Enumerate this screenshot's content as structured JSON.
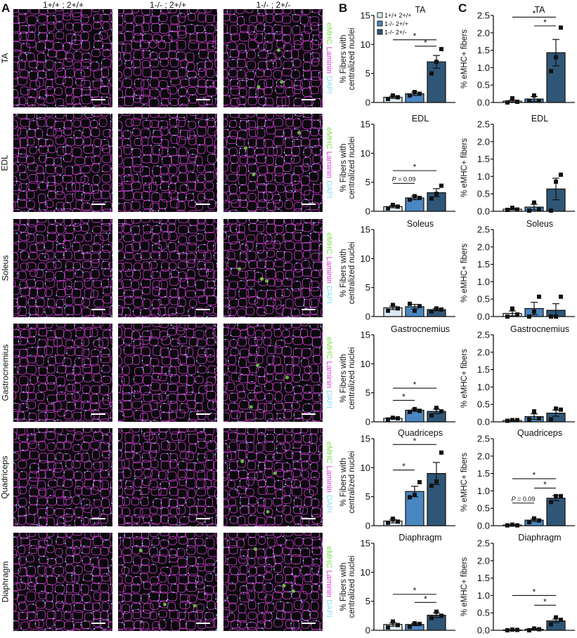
{
  "panels": {
    "A": "A",
    "B": "B",
    "C": "C"
  },
  "genotype_headers": [
    "1+/+ ; 2+/+",
    "1-/- ; 2+/+",
    "1-/- ; 2+/-"
  ],
  "muscles": [
    "TA",
    "EDL",
    "Soleus",
    "Gastrocnemius",
    "Quadriceps",
    "Diaphragm"
  ],
  "stain_labels": {
    "emhc": "eMHC",
    "laminin": "Laminin",
    "dapi": "DAPI"
  },
  "colors": {
    "emhc": "#7ee04a",
    "laminin": "#d63fd6",
    "dapi": "#86dff0",
    "group1": "#dcecf7",
    "group2": "#4a86c0",
    "group3": "#2f5676",
    "image_bg": "#0a0a0c"
  },
  "legend": [
    {
      "label": "1+/+ 2+/+",
      "color": "#dcecf7"
    },
    {
      "label": "1-/- 2+/+",
      "color": "#4a86c0"
    },
    {
      "label": "1-/- 2+/-",
      "color": "#2f5676"
    }
  ],
  "chart_data": [
    {
      "panel": "B",
      "type": "bar",
      "title": "TA",
      "ylabel": "% Fibers with centralized nuclei",
      "ylim": [
        0,
        15
      ],
      "yticks": [
        0,
        5,
        10,
        15
      ],
      "categories": [
        "1+/+ 2+/+",
        "1-/- 2+/+",
        "1-/- 2+/-"
      ],
      "values": [
        0.9,
        1.5,
        7.0
      ],
      "sem": [
        0.2,
        0.3,
        1.1
      ],
      "points": [
        [
          0.6,
          1.2,
          0.9
        ],
        [
          1.2,
          1.8,
          1.5
        ],
        [
          5.0,
          7.0,
          9.2
        ]
      ],
      "annotations": [
        {
          "from": 0,
          "to": 2,
          "label": "*",
          "y": 10.8
        },
        {
          "from": 1,
          "to": 2,
          "label": "*",
          "y": 9.7
        }
      ]
    },
    {
      "panel": "C",
      "type": "bar",
      "title": "TA",
      "ylabel": "% eMHC+ fibers",
      "ylim": [
        0,
        2.5
      ],
      "yticks": [
        0.0,
        0.5,
        1.0,
        1.5,
        2.0,
        2.5
      ],
      "categories": [
        "1+/+ 2+/+",
        "1-/- 2+/+",
        "1-/- 2+/-"
      ],
      "values": [
        0.04,
        0.1,
        1.43
      ],
      "sem": [
        0.03,
        0.07,
        0.38
      ],
      "points": [
        [
          0.0,
          0.12,
          0.02
        ],
        [
          0.05,
          0.2,
          0.05
        ],
        [
          0.9,
          1.3,
          2.15
        ]
      ],
      "annotations": [
        {
          "from": 0,
          "to": 2,
          "label": "*",
          "y": 2.45
        },
        {
          "from": 1,
          "to": 2,
          "label": "*",
          "y": 2.2
        }
      ]
    },
    {
      "panel": "B",
      "type": "bar",
      "title": "EDL",
      "ylabel": "% Fibers with centralized nuclei",
      "ylim": [
        0,
        15
      ],
      "yticks": [
        0,
        5,
        10,
        15
      ],
      "categories": [
        "1+/+ 2+/+",
        "1-/- 2+/+",
        "1-/- 2+/-"
      ],
      "values": [
        0.8,
        2.3,
        3.2
      ],
      "sem": [
        0.2,
        0.3,
        0.7
      ],
      "points": [
        [
          0.5,
          1.1,
          0.8
        ],
        [
          2.0,
          2.6,
          2.3
        ],
        [
          2.2,
          3.0,
          4.4
        ]
      ],
      "annotations": [
        {
          "from": 0,
          "to": 2,
          "label": "*",
          "y": 7.0
        },
        {
          "from": 0,
          "to": 1,
          "label": "P = 0.09",
          "y": 4.8
        }
      ]
    },
    {
      "panel": "C",
      "type": "bar",
      "title": "EDL",
      "ylabel": "% eMHC+ fibers",
      "ylim": [
        0,
        2.5
      ],
      "yticks": [
        0.0,
        0.5,
        1.0,
        1.5,
        2.0,
        2.5
      ],
      "categories": [
        "1+/+ 2+/+",
        "1-/- 2+/+",
        "1-/- 2+/-"
      ],
      "values": [
        0.06,
        0.12,
        0.64
      ],
      "sem": [
        0.02,
        0.08,
        0.31
      ],
      "points": [
        [
          0.04,
          0.1,
          0.05
        ],
        [
          0.02,
          0.25,
          0.05
        ],
        [
          0.02,
          0.85,
          1.05
        ]
      ],
      "annotations": []
    },
    {
      "panel": "B",
      "type": "bar",
      "title": "Soleus",
      "ylabel": "% Fibers with centralized nuclei",
      "ylim": [
        0,
        15
      ],
      "yticks": [
        0,
        5,
        10,
        15
      ],
      "categories": [
        "1+/+ 2+/+",
        "1-/- 2+/+",
        "1-/- 2+/-"
      ],
      "values": [
        1.5,
        1.7,
        1.2
      ],
      "sem": [
        0.3,
        0.4,
        0.2
      ],
      "points": [
        [
          1.0,
          2.0,
          1.4
        ],
        [
          2.2,
          1.0,
          1.8
        ],
        [
          0.9,
          1.4,
          1.2
        ]
      ],
      "annotations": []
    },
    {
      "panel": "C",
      "type": "bar",
      "title": "Soleus",
      "ylabel": "% eMHC+ fibers",
      "ylim": [
        0,
        2.5
      ],
      "yticks": [
        0.0,
        0.5,
        1.0,
        1.5,
        2.0,
        2.5
      ],
      "categories": [
        "1+/+ 2+/+",
        "1-/- 2+/+",
        "1-/- 2+/-"
      ],
      "values": [
        0.09,
        0.23,
        0.18
      ],
      "sem": [
        0.07,
        0.18,
        0.19
      ],
      "points": [
        [
          0.0,
          0.23,
          0.06
        ],
        [
          0.0,
          0.14,
          0.57
        ],
        [
          0.0,
          0.0,
          0.57
        ]
      ],
      "annotations": []
    },
    {
      "panel": "B",
      "type": "bar",
      "title": "Gastrocnemius",
      "ylabel": "% Fibers with centralized nuclei",
      "ylim": [
        0,
        15
      ],
      "yticks": [
        0,
        5,
        10,
        15
      ],
      "categories": [
        "1+/+ 2+/+",
        "1-/- 2+/+",
        "1-/- 2+/-"
      ],
      "values": [
        0.6,
        2.0,
        1.8
      ],
      "sem": [
        0.1,
        0.2,
        0.4
      ],
      "points": [
        [
          0.4,
          0.7,
          0.6
        ],
        [
          1.7,
          2.2,
          1.9
        ],
        [
          1.1,
          2.4,
          1.8
        ]
      ],
      "annotations": [
        {
          "from": 0,
          "to": 2,
          "label": "*",
          "y": 5.8
        },
        {
          "from": 0,
          "to": 1,
          "label": "*",
          "y": 3.7
        }
      ]
    },
    {
      "panel": "C",
      "type": "bar",
      "title": "Gastrocnemius",
      "ylabel": "% eMHC+ fibers",
      "ylim": [
        0,
        2.5
      ],
      "yticks": [
        0.0,
        0.5,
        1.0,
        1.5,
        2.0,
        2.5
      ],
      "categories": [
        "1+/+ 2+/+",
        "1-/- 2+/+",
        "1-/- 2+/-"
      ],
      "values": [
        0.04,
        0.15,
        0.25
      ],
      "sem": [
        0.01,
        0.08,
        0.09
      ],
      "points": [
        [
          0.03,
          0.05,
          0.05
        ],
        [
          0.07,
          0.3,
          0.1
        ],
        [
          0.07,
          0.38,
          0.35
        ]
      ],
      "annotations": []
    },
    {
      "panel": "B",
      "type": "bar",
      "title": "Quadriceps",
      "ylabel": "% Fibers with centralized nuclei",
      "ylim": [
        0,
        15
      ],
      "yticks": [
        0,
        5,
        10,
        15
      ],
      "categories": [
        "1+/+ 2+/+",
        "1-/- 2+/+",
        "1-/- 2+/-"
      ],
      "values": [
        0.8,
        5.9,
        9.0
      ],
      "sem": [
        0.3,
        0.9,
        1.9
      ],
      "points": [
        [
          0.5,
          1.2,
          0.7
        ],
        [
          4.9,
          5.3,
          7.5
        ],
        [
          6.9,
          7.6,
          12.6
        ]
      ],
      "annotations": [
        {
          "from": 0,
          "to": 2,
          "label": "*",
          "y": 14.0
        },
        {
          "from": 0,
          "to": 1,
          "label": "*",
          "y": 9.6
        }
      ]
    },
    {
      "panel": "C",
      "type": "bar",
      "title": "Quadriceps",
      "ylabel": "% eMHC+ fibers",
      "ylim": [
        0,
        2.5
      ],
      "yticks": [
        0.0,
        0.5,
        1.0,
        1.5,
        2.0,
        2.5
      ],
      "categories": [
        "1+/+ 2+/+",
        "1-/- 2+/+",
        "1-/- 2+/-"
      ],
      "values": [
        0.02,
        0.16,
        0.79
      ],
      "sem": [
        0.01,
        0.04,
        0.07
      ],
      "points": [
        [
          0.01,
          0.03,
          0.01
        ],
        [
          0.1,
          0.21,
          0.15
        ],
        [
          0.68,
          0.85,
          0.85
        ]
      ],
      "annotations": [
        {
          "from": 0,
          "to": 2,
          "label": "*",
          "y": 1.35
        },
        {
          "from": 1,
          "to": 2,
          "label": "*",
          "y": 1.08
        },
        {
          "from": 0,
          "to": 1,
          "label": "P = 0.09",
          "y": 0.65
        }
      ]
    },
    {
      "panel": "B",
      "type": "bar",
      "title": "Diaphragm",
      "ylabel": "% Fibers with centralized nuclei",
      "ylim": [
        0,
        15
      ],
      "yticks": [
        0,
        5,
        10,
        15
      ],
      "categories": [
        "1+/+ 2+/+",
        "1-/- 2+/+",
        "1-/- 2+/-"
      ],
      "values": [
        1.0,
        1.0,
        2.6
      ],
      "sem": [
        0.3,
        0.2,
        0.4
      ],
      "points": [
        [
          0.5,
          1.5,
          0.9
        ],
        [
          0.6,
          1.2,
          1.1
        ],
        [
          2.1,
          3.2,
          2.5
        ]
      ],
      "annotations": [
        {
          "from": 0,
          "to": 2,
          "label": "*",
          "y": 6.2
        },
        {
          "from": 1,
          "to": 2,
          "label": "*",
          "y": 4.8
        }
      ]
    },
    {
      "panel": "C",
      "type": "bar",
      "title": "Diaphragm",
      "ylabel": "% eMHC+ fibers",
      "ylim": [
        0,
        2.5
      ],
      "yticks": [
        0.0,
        0.5,
        1.0,
        1.5,
        2.0,
        2.5
      ],
      "categories": [
        "1+/+ 2+/+",
        "1-/- 2+/+",
        "1-/- 2+/-"
      ],
      "values": [
        0.01,
        0.03,
        0.27
      ],
      "sem": [
        0.01,
        0.02,
        0.05
      ],
      "points": [
        [
          0.0,
          0.02,
          0.01
        ],
        [
          0.0,
          0.05,
          0.03
        ],
        [
          0.17,
          0.37,
          0.3
        ]
      ],
      "annotations": [
        {
          "from": 0,
          "to": 2,
          "label": "*",
          "y": 1.0
        },
        {
          "from": 1,
          "to": 2,
          "label": "*",
          "y": 0.72
        }
      ]
    }
  ]
}
